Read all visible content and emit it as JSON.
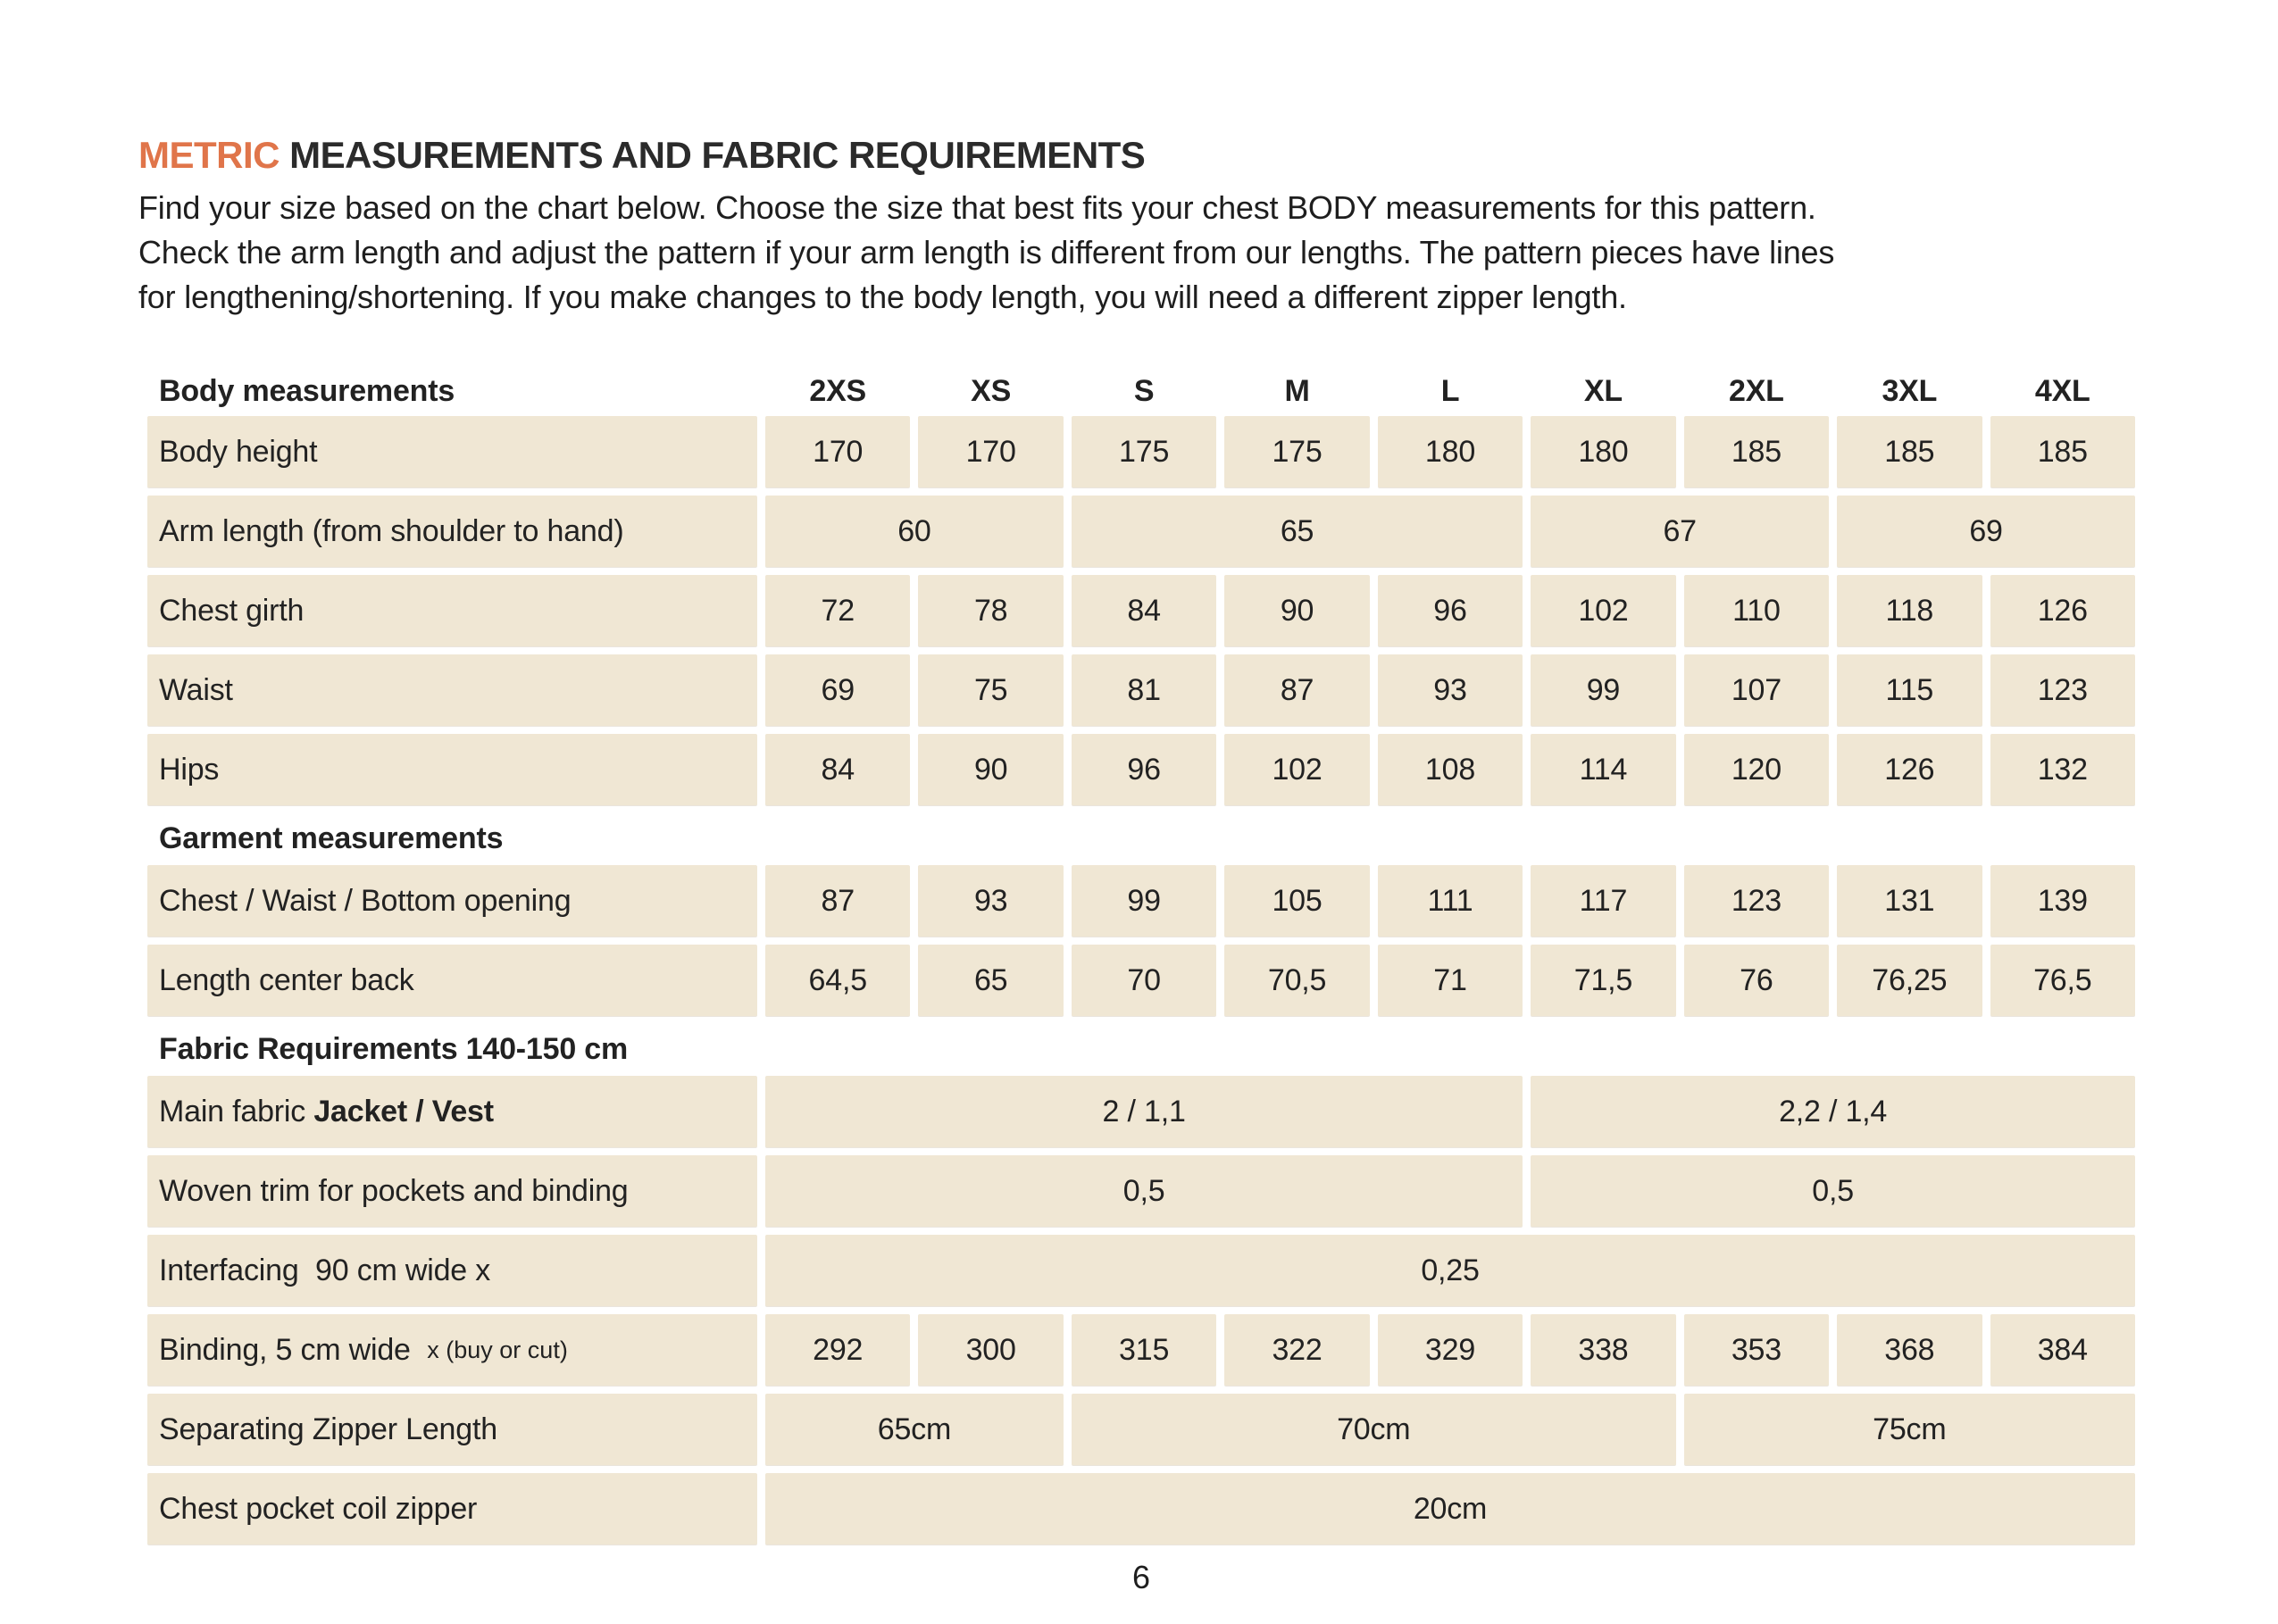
{
  "title": {
    "highlight": "METRIC",
    "rest": " MEASUREMENTS AND FABRIC REQUIREMENTS"
  },
  "intro": {
    "lines": [
      "Find your size based on the chart below. Choose the size that best fits your chest BODY measurements for this pattern.",
      "Check the arm length and adjust the pattern if your arm length is different from our lengths. The pattern pieces have lines",
      "for lengthening/shortening. If you make changes to the body length, you will need a different zipper length."
    ]
  },
  "colors": {
    "accent": "#e0754a",
    "cell_bg": "#f0e7d4",
    "text_dark": "#222222"
  },
  "table": {
    "header": {
      "label": "Body measurements",
      "sizes": [
        "2XS",
        "XS",
        "S",
        "M",
        "L",
        "XL",
        "2XL",
        "3XL",
        "4XL"
      ]
    },
    "rows": [
      {
        "type": "data",
        "label": "Body height",
        "cells": [
          "170",
          "170",
          "175",
          "175",
          "180",
          "180",
          "185",
          "185",
          "185"
        ]
      },
      {
        "type": "data",
        "label": "Arm length (from shoulder to hand)",
        "cells": [
          {
            "v": "60",
            "span": 2
          },
          {
            "v": "65",
            "span": 3
          },
          {
            "v": "67",
            "span": 2
          },
          {
            "v": "69",
            "span": 2
          }
        ]
      },
      {
        "type": "data",
        "label": "Chest girth",
        "cells": [
          "72",
          "78",
          "84",
          "90",
          "96",
          "102",
          "110",
          "118",
          "126"
        ]
      },
      {
        "type": "data",
        "label": "Waist",
        "cells": [
          "69",
          "75",
          "81",
          "87",
          "93",
          "99",
          "107",
          "115",
          "123"
        ]
      },
      {
        "type": "data",
        "label": "Hips",
        "cells": [
          "84",
          "90",
          "96",
          "102",
          "108",
          "114",
          "120",
          "126",
          "132"
        ]
      },
      {
        "type": "section",
        "label": "Garment measurements"
      },
      {
        "type": "data",
        "label": "Chest / Waist / Bottom opening",
        "cells": [
          "87",
          "93",
          "99",
          "105",
          "111",
          "117",
          "123",
          "131",
          "139"
        ]
      },
      {
        "type": "data",
        "label": "Length center back",
        "cells": [
          "64,5",
          "65",
          "70",
          "70,5",
          "71",
          "71,5",
          "76",
          "76,25",
          "76,5"
        ]
      },
      {
        "type": "section",
        "label": "Fabric Requirements 140-150 cm"
      },
      {
        "type": "data",
        "label": "Main fabric",
        "label_bold": "Jacket / Vest",
        "cells": [
          {
            "v": "2 / 1,1",
            "span": 5
          },
          {
            "v": "2,2 / 1,4",
            "span": 4
          }
        ]
      },
      {
        "type": "data",
        "label": "Woven trim for pockets and binding",
        "cells": [
          {
            "v": "0,5",
            "span": 5
          },
          {
            "v": "0,5",
            "span": 4
          }
        ]
      },
      {
        "type": "data",
        "label": "Interfacing  90 cm wide x",
        "cells": [
          {
            "v": "0,25",
            "span": 9
          }
        ]
      },
      {
        "type": "data",
        "label": "Binding, 5 cm wide",
        "label_small": "x (buy or cut)",
        "cells": [
          "292",
          "300",
          "315",
          "322",
          "329",
          "338",
          "353",
          "368",
          "384"
        ]
      },
      {
        "type": "data",
        "label": "Separating Zipper Length",
        "cells": [
          {
            "v": "65cm",
            "span": 2
          },
          {
            "v": "70cm",
            "span": 4
          },
          {
            "v": "75cm",
            "span": 3
          }
        ]
      },
      {
        "type": "data",
        "label": "Chest pocket coil zipper",
        "cells": [
          {
            "v": "20cm",
            "span": 9
          }
        ]
      }
    ]
  },
  "page_number": "6"
}
